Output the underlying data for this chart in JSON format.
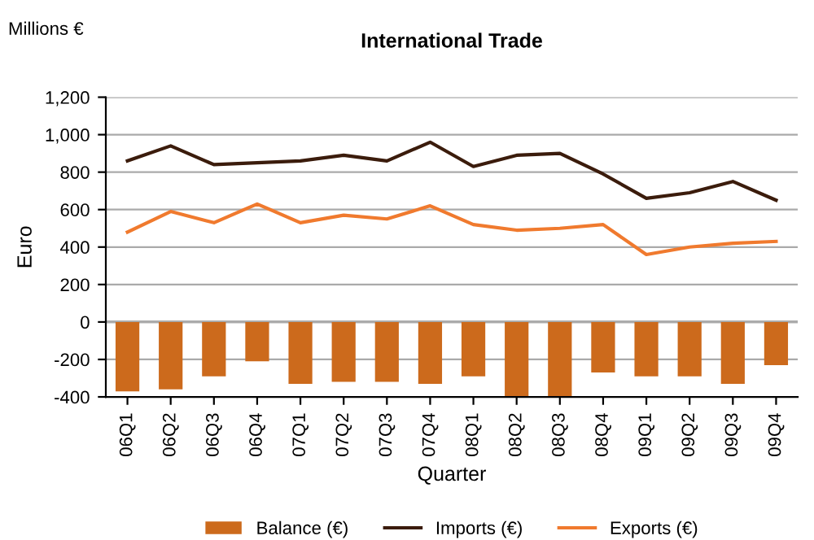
{
  "chart_data": {
    "type": "bar",
    "title": "International Trade",
    "xlabel": "Quarter",
    "ylabel": "Euro",
    "annotations": [
      "Millions €"
    ],
    "categories": [
      "06Q1",
      "06Q2",
      "06Q3",
      "06Q4",
      "07Q1",
      "07Q2",
      "07Q3",
      "07Q4",
      "08Q1",
      "08Q2",
      "08Q3",
      "08Q4",
      "09Q1",
      "09Q2",
      "09Q3",
      "09Q4"
    ],
    "series": [
      {
        "name": "Balance (€)",
        "color": "#cc6a1c",
        "values": [
          -370,
          -360,
          -290,
          -210,
          -330,
          -320,
          -320,
          -330,
          -290,
          -400,
          -400,
          -270,
          -290,
          -290,
          -330,
          -230
        ]
      },
      {
        "name": "Imports (€)",
        "type": "line",
        "color": "#3b1c0c",
        "values": [
          860,
          940,
          840,
          850,
          860,
          890,
          860,
          960,
          830,
          890,
          900,
          790,
          660,
          690,
          750,
          650
        ]
      },
      {
        "name": "Exports (€)",
        "type": "line",
        "color": "#f07a2e",
        "values": [
          480,
          590,
          530,
          630,
          530,
          570,
          550,
          620,
          520,
          490,
          500,
          520,
          360,
          400,
          420,
          430
        ]
      }
    ],
    "ylim": [
      -400,
      1200
    ],
    "yticks": [
      {
        "value": -400,
        "label": "-400"
      },
      {
        "value": -200,
        "label": "-200"
      },
      0,
      200,
      400,
      600,
      800,
      {
        "value": 1000,
        "label": "1,000"
      },
      {
        "value": 1200,
        "label": "1,200"
      }
    ],
    "grid": "y",
    "legend": "bottom",
    "marker": "none",
    "line_style": "solid"
  }
}
